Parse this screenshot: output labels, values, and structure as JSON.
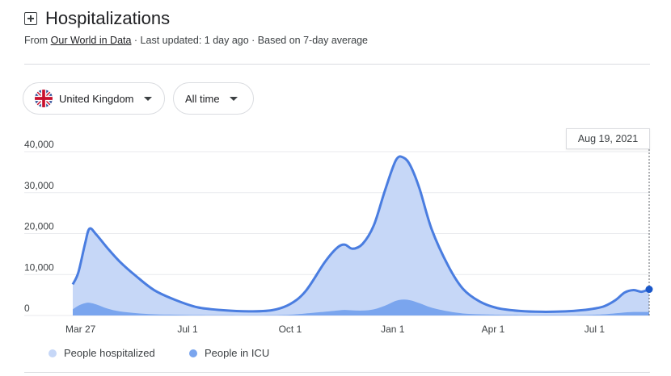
{
  "header": {
    "title": "Hospitalizations",
    "icon": "hospital-icon"
  },
  "subtitle": {
    "prefix": "From ",
    "source_link": "Our World in Data",
    "suffix": " · Last updated: 1 day ago · Based on 7-day average"
  },
  "filters": {
    "country": {
      "label": "United Kingdom",
      "icon": "uk-flag-icon"
    },
    "time_range": {
      "label": "All time"
    }
  },
  "tooltip": {
    "date": "Aug 19, 2021"
  },
  "chart_data": {
    "type": "area",
    "x": [
      "2020-03-20",
      "2020-03-25",
      "2020-03-31",
      "2020-04-04",
      "2020-04-10",
      "2020-04-20",
      "2020-05-01",
      "2020-05-15",
      "2020-06-01",
      "2020-06-20",
      "2020-07-10",
      "2020-08-01",
      "2020-08-25",
      "2020-09-15",
      "2020-10-01",
      "2020-10-15",
      "2020-11-01",
      "2020-11-12",
      "2020-11-19",
      "2020-11-26",
      "2020-12-05",
      "2020-12-15",
      "2020-12-25",
      "2021-01-04",
      "2021-01-11",
      "2021-01-17",
      "2021-01-25",
      "2021-02-05",
      "2021-02-20",
      "2021-03-05",
      "2021-03-20",
      "2021-04-05",
      "2021-04-25",
      "2021-05-15",
      "2021-06-05",
      "2021-06-20",
      "2021-07-01",
      "2021-07-10",
      "2021-07-20",
      "2021-07-28",
      "2021-08-05",
      "2021-08-12",
      "2021-08-19"
    ],
    "series": [
      {
        "name": "People hospitalized",
        "color": "#4a7de0",
        "fill": "#c6d7f7",
        "values": [
          7600,
          10500,
          17500,
          21200,
          19800,
          16500,
          13200,
          9800,
          6200,
          3800,
          2000,
          1300,
          1000,
          1300,
          2800,
          6000,
          13000,
          16500,
          17300,
          16300,
          17500,
          22000,
          30500,
          38000,
          38500,
          36500,
          31000,
          21000,
          12000,
          6500,
          3400,
          1800,
          1100,
          900,
          1000,
          1300,
          1700,
          2300,
          3800,
          5600,
          6200,
          5800,
          6400
        ]
      },
      {
        "name": "People in ICU",
        "color": "#7aa5ee",
        "fill": "#7aa5ee",
        "values": [
          1500,
          2400,
          3000,
          3100,
          2700,
          1700,
          1000,
          600,
          300,
          200,
          120,
          90,
          70,
          90,
          200,
          500,
          900,
          1200,
          1350,
          1250,
          1200,
          1500,
          2400,
          3600,
          3900,
          3700,
          3000,
          1900,
          1000,
          500,
          300,
          200,
          150,
          120,
          120,
          150,
          200,
          300,
          550,
          750,
          850,
          850,
          850
        ]
      }
    ],
    "y_ticks": [
      "40,000",
      "30,000",
      "20,000",
      "10,000",
      "0"
    ],
    "y_tick_values": [
      40000,
      30000,
      20000,
      10000,
      0
    ],
    "ylim": [
      0,
      42000
    ],
    "x_ticks": [
      "Mar 27",
      "Jul 1",
      "Oct 1",
      "Jan 1",
      "Apr 1",
      "Jul 1"
    ],
    "x_tick_dates": [
      "2020-03-27",
      "2020-07-01",
      "2020-10-01",
      "2021-01-01",
      "2021-04-01",
      "2021-07-01"
    ],
    "grid": true,
    "legend": "bottom-left"
  },
  "legend": {
    "items": [
      {
        "label": "People hospitalized",
        "color": "#c6d7f7"
      },
      {
        "label": "People in ICU",
        "color": "#7aa5ee"
      }
    ]
  }
}
